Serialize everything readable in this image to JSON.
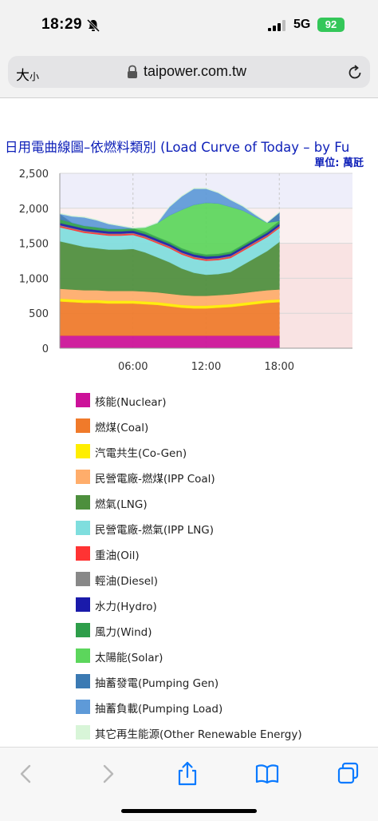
{
  "status_bar": {
    "time": "18:29",
    "network": "5G",
    "battery": "92"
  },
  "address_bar": {
    "text_size_label": "大",
    "text_size_small": "小",
    "url": "taipower.com.tw"
  },
  "chart_data": {
    "type": "area",
    "title": "日用電曲線圖–依燃料類別 (Load Curve of Today – by Fu",
    "unit_label": "單位: 萬瓩",
    "ylim": [
      0,
      2500
    ],
    "y_ticks": [
      "2,500",
      "2,000",
      "1,500",
      "1,000",
      "500",
      "0"
    ],
    "x_ticks": [
      "06:00",
      "12:00",
      "18:00"
    ],
    "xlim_hours": [
      0,
      24
    ],
    "x": [
      0,
      1,
      2,
      3,
      4,
      5,
      6,
      7,
      8,
      9,
      10,
      11,
      12,
      13,
      14,
      15,
      16,
      17,
      18
    ],
    "series": [
      {
        "name": "核能(Nuclear)",
        "color": "#cc1199",
        "values": [
          180,
          180,
          180,
          180,
          180,
          180,
          180,
          180,
          180,
          180,
          180,
          180,
          180,
          180,
          180,
          180,
          180,
          180,
          180
        ]
      },
      {
        "name": "燃煤(Coal)",
        "color": "#f07a2a",
        "values": [
          490,
          480,
          470,
          470,
          460,
          460,
          460,
          450,
          440,
          420,
          400,
          390,
          390,
          400,
          410,
          430,
          450,
          470,
          480
        ]
      },
      {
        "name": "汽電共生(Co-Gen)",
        "color": "#ffee00",
        "values": [
          40,
          40,
          40,
          40,
          40,
          40,
          40,
          40,
          40,
          40,
          40,
          40,
          40,
          40,
          40,
          40,
          40,
          40,
          40
        ]
      },
      {
        "name": "民營電廠-燃煤(IPP Coal)",
        "color": "#ffad6b",
        "values": [
          140,
          140,
          140,
          140,
          140,
          140,
          140,
          140,
          140,
          140,
          140,
          140,
          140,
          140,
          140,
          140,
          140,
          140,
          140
        ]
      },
      {
        "name": "燃氣(LNG)",
        "color": "#4d8f3d",
        "values": [
          680,
          650,
          620,
          600,
          590,
          590,
          600,
          560,
          500,
          450,
          380,
          330,
          300,
          300,
          320,
          400,
          480,
          560,
          680
        ]
      },
      {
        "name": "民營電廠-燃氣(IPP LNG)",
        "color": "#7fdede",
        "values": [
          200,
          200,
          200,
          200,
          200,
          200,
          200,
          200,
          200,
          200,
          200,
          200,
          200,
          200,
          200,
          200,
          200,
          200,
          200
        ]
      },
      {
        "name": "重油(Oil)",
        "color": "#ff3333",
        "values": [
          20,
          20,
          20,
          20,
          20,
          20,
          20,
          20,
          20,
          20,
          20,
          20,
          20,
          20,
          20,
          20,
          20,
          20,
          20
        ]
      },
      {
        "name": "輕油(Diesel)",
        "color": "#888888",
        "values": [
          10,
          10,
          10,
          10,
          10,
          10,
          10,
          10,
          10,
          10,
          10,
          10,
          10,
          10,
          10,
          10,
          10,
          10,
          10
        ]
      },
      {
        "name": "水力(Hydro)",
        "color": "#1a1aaa",
        "values": [
          30,
          30,
          30,
          30,
          30,
          30,
          30,
          30,
          30,
          30,
          30,
          30,
          30,
          30,
          30,
          30,
          30,
          30,
          30
        ]
      },
      {
        "name": "風力(Wind)",
        "color": "#2e9e4a",
        "values": [
          50,
          45,
          40,
          40,
          35,
          35,
          35,
          35,
          30,
          30,
          30,
          30,
          30,
          30,
          30,
          30,
          30,
          35,
          40
        ]
      },
      {
        "name": "太陽能(Solar)",
        "color": "#5cd65c",
        "values": [
          0,
          0,
          0,
          0,
          0,
          0,
          0,
          60,
          200,
          380,
          550,
          680,
          740,
          720,
          640,
          490,
          300,
          110,
          0
        ]
      },
      {
        "name": "抽蓄發電(Pumping Gen)",
        "color": "#3b7ab3",
        "values": [
          80,
          0,
          0,
          0,
          0,
          0,
          0,
          0,
          0,
          0,
          0,
          0,
          0,
          0,
          0,
          0,
          0,
          0,
          120
        ]
      },
      {
        "name": "抽蓄負載(Pumping Load)",
        "color": "#5e9ad8",
        "values": [
          0,
          90,
          120,
          100,
          70,
          40,
          0,
          0,
          0,
          120,
          190,
          230,
          200,
          150,
          100,
          60,
          30,
          0,
          0
        ]
      },
      {
        "name": "其它再生能源(Other Renewable Energy)",
        "color": "#d8f5d8",
        "values": [
          10,
          10,
          10,
          10,
          10,
          10,
          10,
          10,
          10,
          10,
          10,
          10,
          10,
          10,
          10,
          10,
          10,
          10,
          10
        ]
      }
    ],
    "legend_position": "bottom",
    "grid": true
  }
}
